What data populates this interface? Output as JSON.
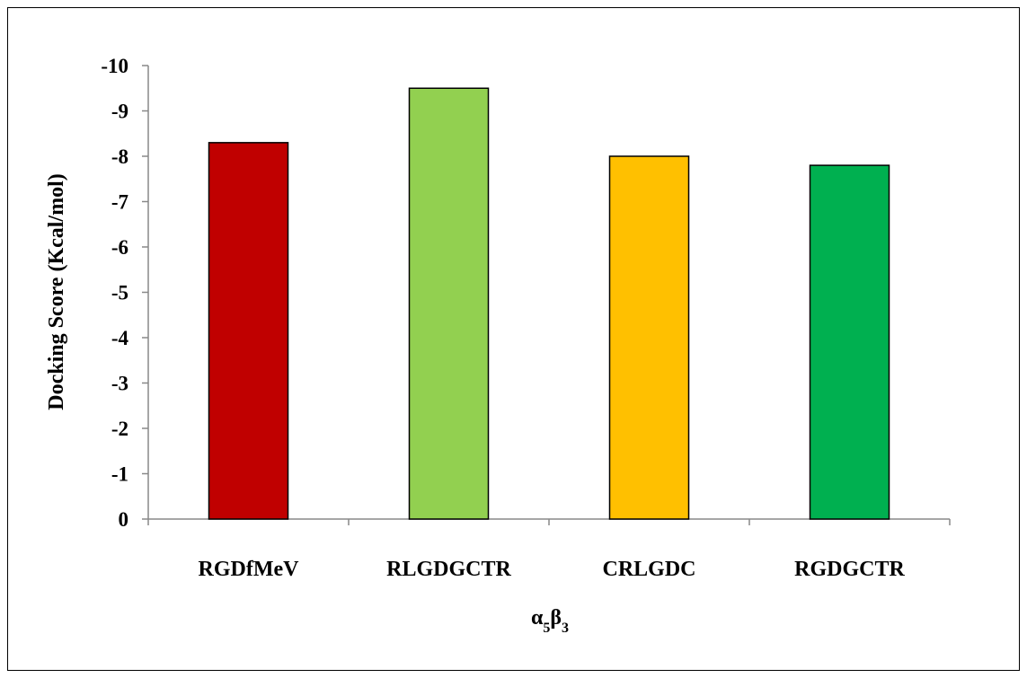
{
  "chart_data": {
    "type": "bar",
    "categories": [
      "RGDfMeV",
      "RLGDGCTR",
      "CRLGDC",
      "RGDGCTR"
    ],
    "values": [
      -8.3,
      -9.5,
      -8.0,
      -7.8
    ],
    "colors": [
      "#c00000",
      "#92d050",
      "#ffc000",
      "#00b050"
    ],
    "xlabel": "α5β3",
    "ylabel": "Docking Score (Kcal/mol)",
    "ylim": [
      0,
      -10
    ],
    "yticks": [
      "0",
      "-1",
      "-2",
      "-3",
      "-4",
      "-5",
      "-6",
      "-7",
      "-8",
      "-9",
      "-10"
    ],
    "grid": false,
    "legend": "none"
  }
}
